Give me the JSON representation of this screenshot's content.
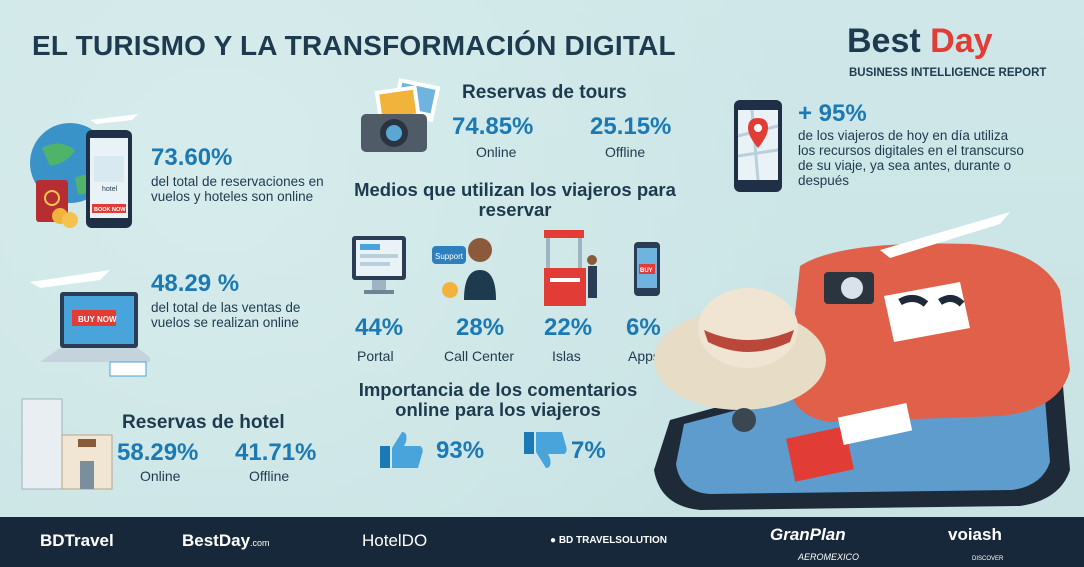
{
  "header": {
    "title": "EL TURISMO Y LA TRANSFORMACIÓN DIGITAL",
    "brand_part1": "Best",
    "brand_part2": "Day",
    "brand_subtitle": "BUSINESS INTELLIGENCE REPORT"
  },
  "left": {
    "stat1_value": "73.60%",
    "stat1_text": "del total de reservaciones en vuelos y hoteles son online",
    "stat2_value": "48.29 %",
    "stat2_text": "del total de las ventas de vuelos se realizan online",
    "hotel_title": "Reservas de hotel",
    "hotel_online_value": "58.29%",
    "hotel_online_label": "Online",
    "hotel_offline_value": "41.71%",
    "hotel_offline_label": "Offline",
    "phone_hotel_label": "hotel",
    "phone_book_label": "BOOK NOW",
    "laptop_buy_label": "BUY NOW"
  },
  "center": {
    "tours_title": "Reservas de tours",
    "tours_online_value": "74.85%",
    "tours_online_label": "Online",
    "tours_offline_value": "25.15%",
    "tours_offline_label": "Offline",
    "means_title": "Medios que utilizan los viajeros para reservar",
    "means": [
      {
        "value": "44%",
        "label": "Portal"
      },
      {
        "value": "28%",
        "label": "Call Center"
      },
      {
        "value": "22%",
        "label": "Islas"
      },
      {
        "value": "6%",
        "label": "Apps"
      }
    ],
    "support_label": "Support",
    "buy_label": "BUY",
    "opinion_title": "Importancia de los comentarios online para los viajeros",
    "opinion_positive": "93%",
    "opinion_negative": "7%"
  },
  "right": {
    "digital_value": "+ 95%",
    "digital_text": "de los viajeros de hoy en día utiliza los recursos digitales en el transcurso de su viaje, ya sea antes, durante o después"
  },
  "footer": {
    "logos": [
      "BDTravel",
      "BestDay",
      ".com",
      "HotelDO",
      "BD TRAVELSOLUTION",
      "GranPlan",
      "AEROMEXICO",
      "voiash",
      "DISCOVER"
    ]
  },
  "colors": {
    "background": "#cfe6e7",
    "accent_blue": "#1b79b3",
    "brand_red": "#e13d36",
    "dark_navy": "#1e3a4f",
    "footer": "#17283a"
  }
}
